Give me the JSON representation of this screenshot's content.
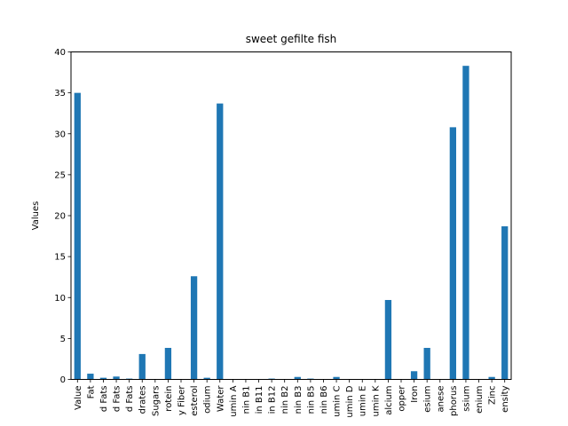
{
  "chart_data": {
    "type": "bar",
    "title": "sweet gefilte fish",
    "xlabel": "",
    "ylabel": "Values",
    "ylim": [
      0,
      40
    ],
    "yticks": [
      0,
      5,
      10,
      15,
      20,
      25,
      30,
      35,
      40
    ],
    "grid": false,
    "legend": "none",
    "bar_color": "#1f77b4",
    "categories": [
      "Value",
      "Fat",
      "d Fats",
      "d Fats",
      "d Fats",
      "drates",
      "Sugars",
      "rotein",
      "y Fiber",
      "esterol",
      "odium",
      "Water",
      "umin A",
      "nin B1",
      "in B11",
      "in B12",
      "nin B2",
      "nin B3",
      "nin B5",
      "nin B6",
      "umin C",
      "umin D",
      "umin E",
      "umin K",
      "alcium",
      "opper",
      "Iron",
      "esium",
      "anese",
      "phorus",
      "ssium",
      "enium",
      "Zinc",
      "ensity"
    ],
    "values": [
      35.0,
      0.7,
      0.2,
      0.35,
      0.1,
      3.1,
      0.0,
      3.85,
      0.0,
      12.6,
      0.2,
      33.7,
      0.0,
      0.0,
      0.0,
      0.1,
      0.0,
      0.3,
      0.1,
      0.05,
      0.3,
      0.0,
      0.0,
      0.0,
      9.7,
      0.0,
      1.0,
      3.85,
      0.0,
      30.8,
      38.3,
      0.0,
      0.3,
      18.7
    ]
  }
}
